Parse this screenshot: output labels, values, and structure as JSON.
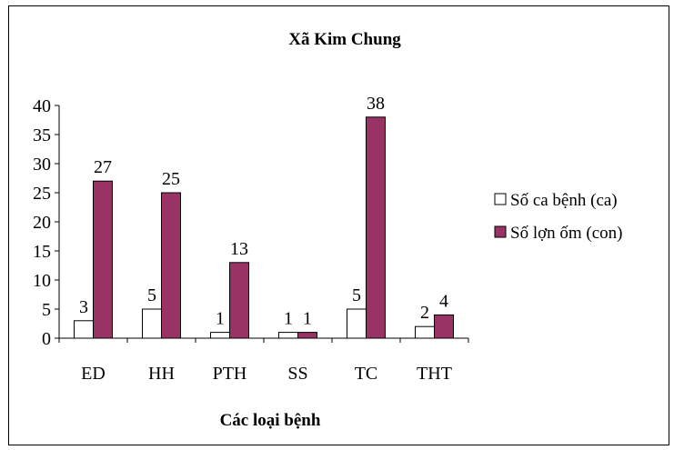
{
  "chart_data": {
    "type": "bar",
    "title": "Xã Kim Chung",
    "xlabel": "Các loại bệnh",
    "ylabel": "",
    "categories": [
      "ED",
      "HH",
      "PTH",
      "SS",
      "TC",
      "THT"
    ],
    "series": [
      {
        "name": "Số ca bệnh (ca)",
        "values": [
          3,
          5,
          1,
          1,
          5,
          2
        ],
        "color": "#ffffff"
      },
      {
        "name": "Số lợn ốm (con)",
        "values": [
          27,
          25,
          13,
          1,
          38,
          4
        ],
        "color": "#993366"
      }
    ],
    "ylim": [
      0,
      40
    ],
    "yticks": [
      0,
      5,
      10,
      15,
      20,
      25,
      30,
      35,
      40
    ],
    "grid": false,
    "legend_position": "right"
  }
}
